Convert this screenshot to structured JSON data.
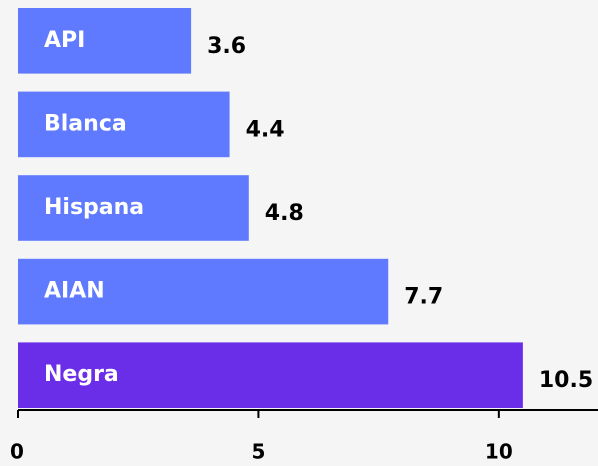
{
  "chart_data": {
    "type": "hbar",
    "categories": [
      "API",
      "Blanca",
      "Hispana",
      "AIAN",
      "Negra"
    ],
    "values": [
      3.6,
      4.4,
      4.8,
      7.7,
      10.5
    ],
    "colors": [
      "#5f7afe",
      "#5f7afe",
      "#5f7afe",
      "#5f7afe",
      "#6b2ee8"
    ],
    "xlim": [
      0,
      12
    ],
    "xticks": [
      0,
      5,
      10
    ]
  }
}
